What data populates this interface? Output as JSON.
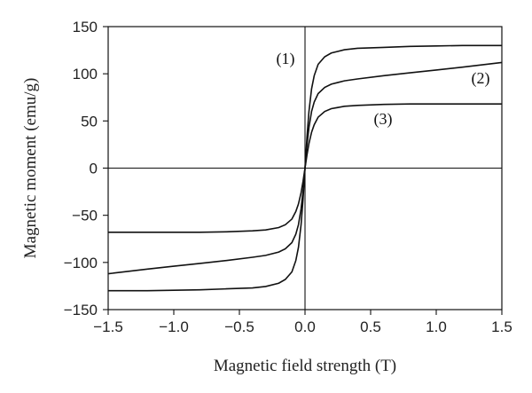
{
  "chart_data": {
    "type": "line",
    "xlabel": "Magnetic field strength (T)",
    "ylabel": "Magnetic moment (emu/g)",
    "xlim": [
      -1.5,
      1.5
    ],
    "ylim": [
      -150,
      150
    ],
    "x_ticks": [
      -1.5,
      -1.0,
      -0.5,
      0.0,
      0.5,
      1.0,
      1.5
    ],
    "x_tick_labels": [
      "−1.5",
      "−1.0",
      "−0.5",
      "0.0",
      "0.5",
      "1.0",
      "1.5"
    ],
    "y_ticks": [
      150,
      100,
      50,
      0,
      -50,
      -100,
      -150
    ],
    "y_tick_labels": [
      "150",
      "100",
      "50",
      "0",
      "−50",
      "−100",
      "−150"
    ],
    "zero_lines": true,
    "grid": false,
    "legend": "none",
    "line_color": "#111111",
    "series": [
      {
        "name": "(1)",
        "x": [
          -1.5,
          -1.2,
          -1.0,
          -0.8,
          -0.6,
          -0.4,
          -0.3,
          -0.2,
          -0.15,
          -0.1,
          -0.07,
          -0.05,
          -0.03,
          -0.015,
          0,
          0.015,
          0.03,
          0.05,
          0.07,
          0.1,
          0.15,
          0.2,
          0.3,
          0.4,
          0.6,
          0.8,
          1.0,
          1.2,
          1.5
        ],
        "y": [
          -130,
          -130,
          -129.5,
          -129,
          -128,
          -127,
          -125.5,
          -122,
          -118,
          -110,
          -98,
          -84,
          -60,
          -33,
          0,
          33,
          60,
          84,
          98,
          110,
          118,
          122,
          125.5,
          127,
          128,
          129,
          129.5,
          130,
          130
        ]
      },
      {
        "name": "(2)",
        "x": [
          -1.5,
          -1.2,
          -1.0,
          -0.8,
          -0.6,
          -0.4,
          -0.3,
          -0.2,
          -0.15,
          -0.1,
          -0.07,
          -0.05,
          -0.03,
          -0.015,
          0,
          0.015,
          0.03,
          0.05,
          0.07,
          0.1,
          0.15,
          0.2,
          0.3,
          0.4,
          0.6,
          0.8,
          1.0,
          1.2,
          1.5
        ],
        "y": [
          -112,
          -107,
          -104,
          -101,
          -98,
          -94.5,
          -92.5,
          -89,
          -85.5,
          -79,
          -70,
          -60,
          -43,
          -24,
          0,
          24,
          43,
          60,
          70,
          79,
          85.5,
          89,
          92.5,
          94.5,
          98,
          101,
          104,
          107,
          112
        ]
      },
      {
        "name": "(3)",
        "x": [
          -1.5,
          -1.2,
          -1.0,
          -0.8,
          -0.6,
          -0.4,
          -0.3,
          -0.2,
          -0.15,
          -0.1,
          -0.07,
          -0.05,
          -0.03,
          -0.015,
          0,
          0.015,
          0.03,
          0.05,
          0.07,
          0.1,
          0.15,
          0.2,
          0.3,
          0.4,
          0.6,
          0.8,
          1.0,
          1.2,
          1.5
        ],
        "y": [
          -68,
          -68,
          -68,
          -68,
          -67.5,
          -66.5,
          -65.5,
          -63,
          -60,
          -54,
          -46,
          -38,
          -26,
          -14,
          0,
          14,
          26,
          38,
          46,
          54,
          60,
          63,
          65.5,
          66.5,
          67.5,
          68,
          68,
          68,
          68
        ]
      }
    ]
  }
}
